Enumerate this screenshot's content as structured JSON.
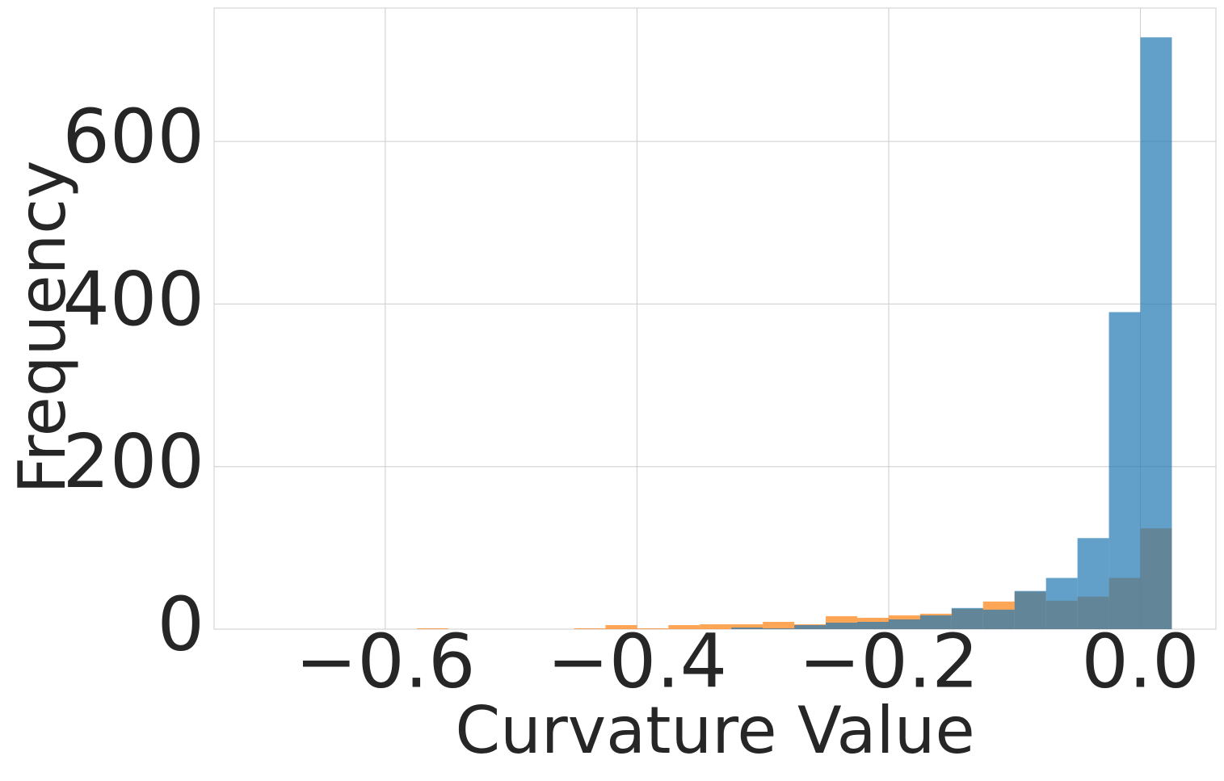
{
  "chart_data": {
    "type": "histogram",
    "xlabel": "Curvature Value",
    "ylabel": "Frequency",
    "bins": [
      -0.7,
      -0.675,
      -0.65,
      -0.625,
      -0.6,
      -0.575,
      -0.55,
      -0.525,
      -0.5,
      -0.475,
      -0.45,
      -0.425,
      -0.4,
      -0.375,
      -0.35,
      -0.325,
      -0.3,
      -0.275,
      -0.25,
      -0.225,
      -0.2,
      -0.175,
      -0.15,
      -0.125,
      -0.1,
      -0.075,
      -0.05,
      -0.025,
      0,
      0.025
    ],
    "series": [
      {
        "color": "#ff7f0e",
        "opacity": 0.7,
        "values": [
          0,
          0,
          0,
          0,
          0,
          1,
          0,
          0,
          0,
          0,
          1,
          5,
          1,
          5,
          6,
          6,
          9,
          6,
          16,
          14,
          17,
          19,
          25,
          34,
          46,
          35,
          40,
          63,
          124
        ]
      },
      {
        "color": "#1f77b4",
        "opacity": 0.7,
        "values": [
          0,
          0,
          0,
          0,
          0,
          0,
          0,
          0,
          0,
          0,
          0,
          0,
          0,
          0,
          0,
          2,
          1,
          5,
          8,
          9,
          12,
          17,
          26,
          24,
          47,
          63,
          112,
          390,
          728
        ]
      }
    ],
    "xlim": [
      -0.736,
      0.06
    ],
    "ylim": [
      0,
      764
    ],
    "xticks": [
      {
        "value": -0.6,
        "label": "−0.6"
      },
      {
        "value": -0.4,
        "label": "−0.4"
      },
      {
        "value": -0.2,
        "label": "−0.2"
      },
      {
        "value": 0,
        "label": "0.0"
      }
    ],
    "yticks": [
      0,
      200,
      400,
      600
    ],
    "grid": true
  }
}
